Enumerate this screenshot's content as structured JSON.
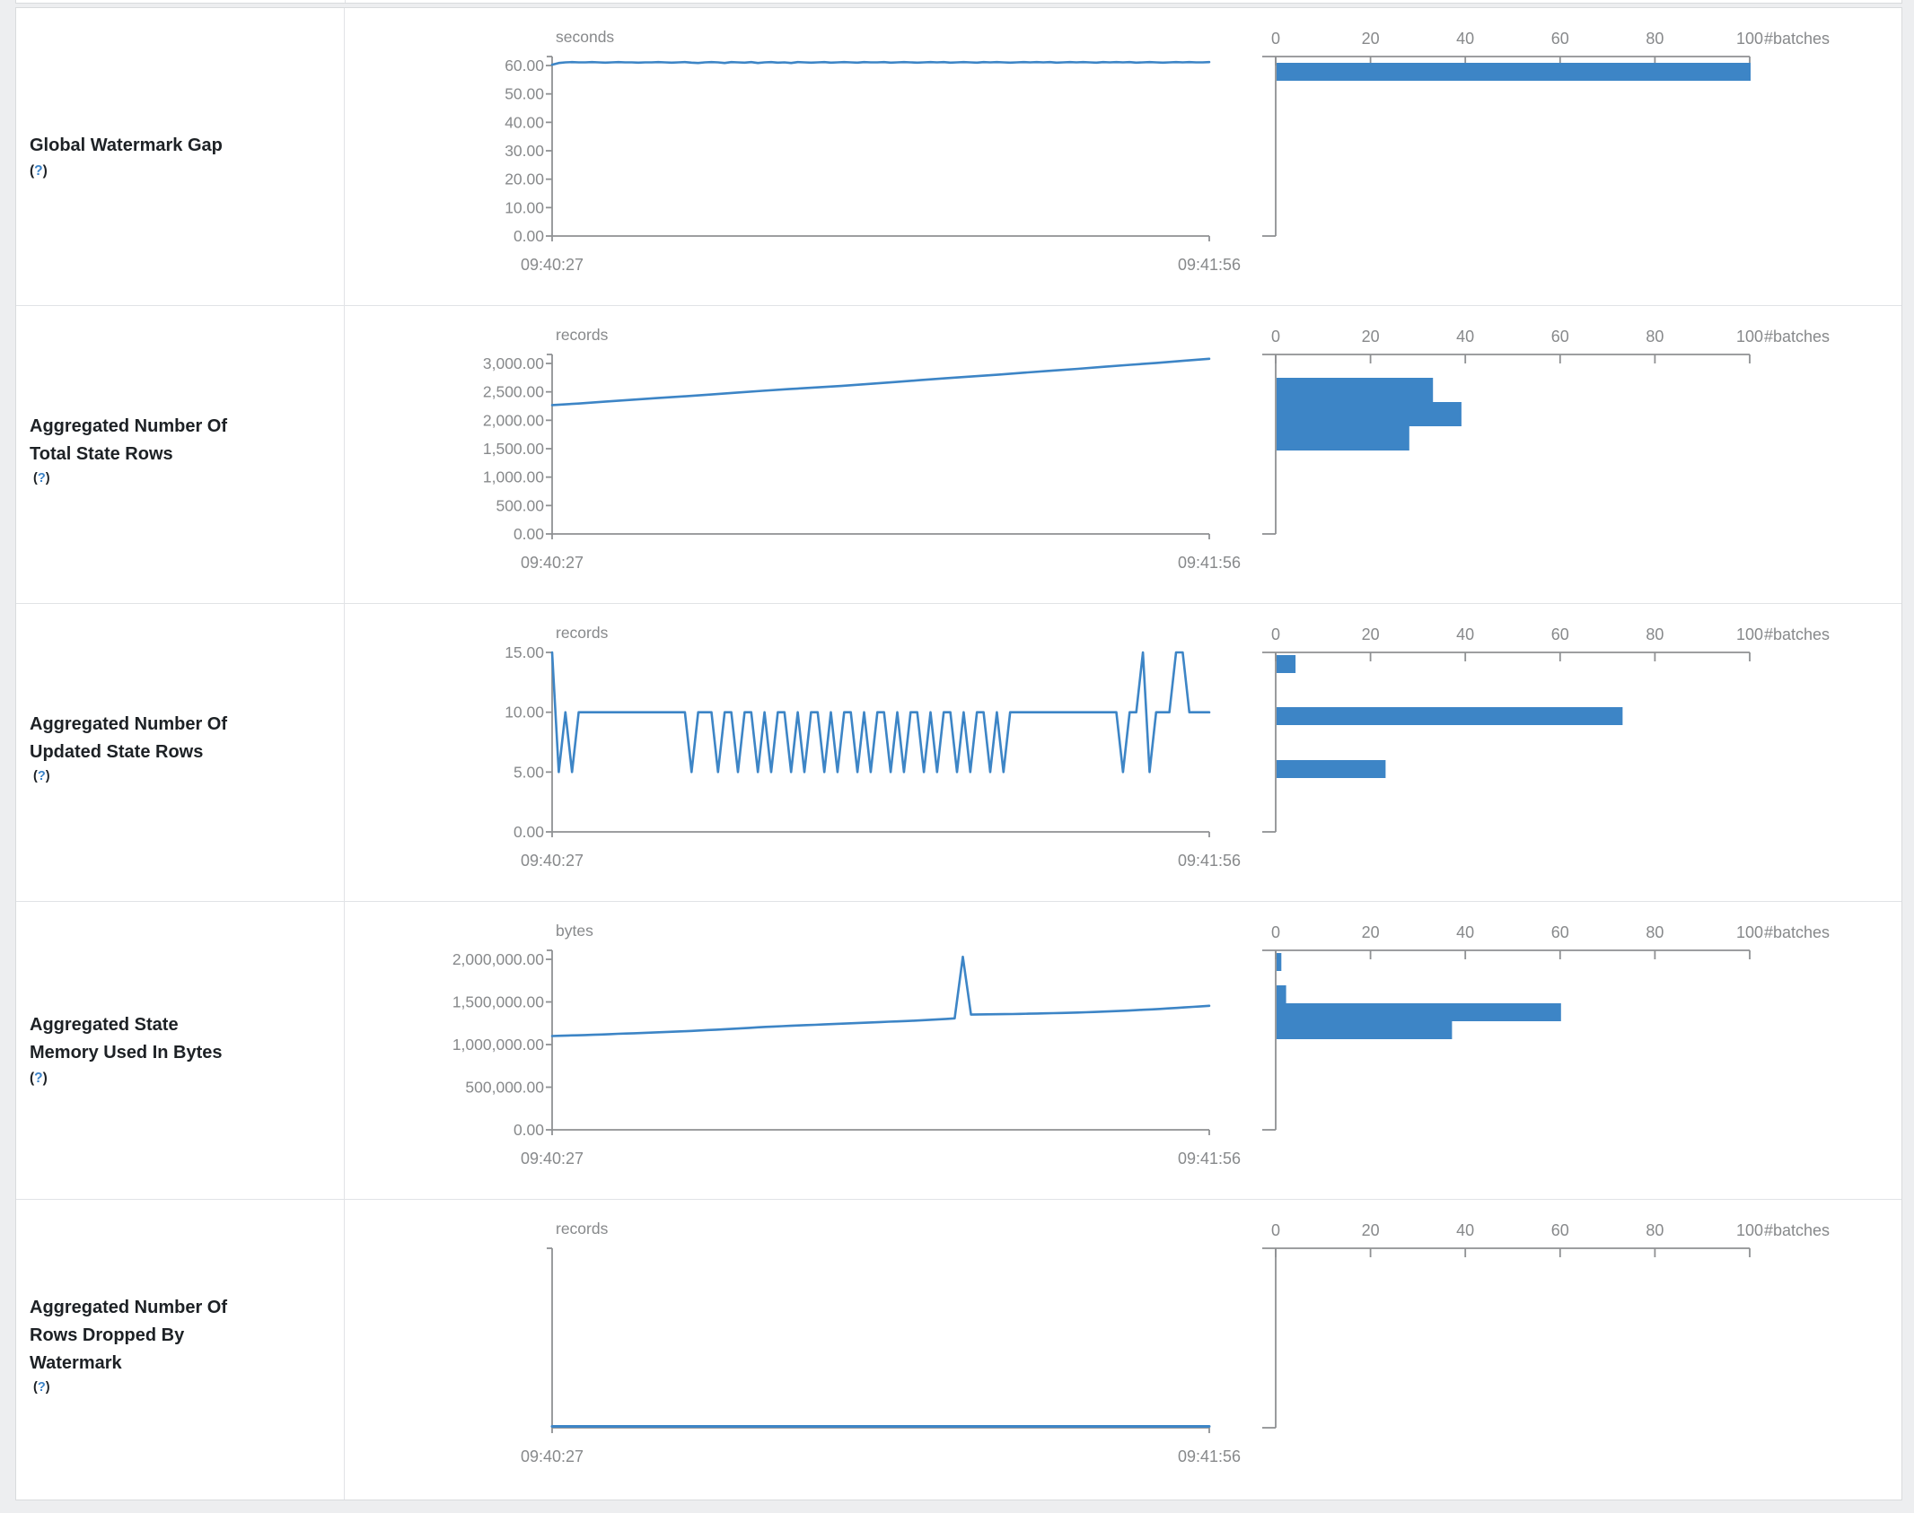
{
  "page": {
    "background": "#edeef0",
    "table_border": "#d9dbdd",
    "row_border": "#e1e3e6",
    "cell_bg": "#ffffff"
  },
  "colors": {
    "accent_blue": "#3d85c6",
    "axis_gray": "#8f9193",
    "text_gray": "#87898b",
    "title_color": "#1d2125",
    "help_blue": "#3c83c8"
  },
  "chart_data": [
    {
      "id": "global-watermark-gap",
      "title_lines": [
        "Global Watermark Gap"
      ],
      "help_label": "(?)",
      "help_inline": false,
      "type": "line+bar",
      "timeline": {
        "unit": "seconds",
        "x_start": "09:40:27",
        "x_end": "09:41:56",
        "y_tick_labels": [
          "60.00",
          "50.00",
          "40.00",
          "30.00",
          "20.00",
          "10.00",
          "0.00"
        ],
        "y_max": 60,
        "has_top_cap": true,
        "values": [
          60.3,
          60.9,
          61.1,
          61.2,
          61.1,
          61.1,
          61.2,
          61.1,
          61.0,
          61.1,
          61.2,
          61.1,
          61.1,
          61.0,
          61.1,
          61.1,
          61.2,
          61.1,
          61.0,
          61.1,
          61.2,
          61.0,
          60.9,
          61.1,
          61.2,
          61.1,
          60.9,
          61.2,
          61.1,
          61.0,
          61.2,
          60.9,
          61.1,
          61.2,
          61.0,
          61.1,
          60.9,
          61.2,
          61.1,
          61.0,
          61.1,
          61.2,
          61.0,
          61.1,
          61.2,
          61.1,
          61.0,
          61.2,
          61.1,
          61.1,
          61.2,
          61.0,
          61.1,
          61.2,
          61.1,
          61.0,
          61.1,
          61.2,
          61.1,
          61.2,
          61.0,
          61.1,
          61.2,
          61.1,
          61.0,
          61.2,
          61.1,
          61.2,
          61.1,
          61.0,
          61.1,
          61.2,
          61.1,
          61.2,
          61.1,
          61.2,
          61.0,
          61.1,
          61.2,
          61.1,
          61.2,
          61.1,
          61.0,
          61.2,
          61.1,
          61.2,
          61.1,
          61.2,
          61.0,
          61.1,
          61.2,
          61.1,
          61.0,
          61.1,
          61.2,
          61.1,
          61.2,
          61.1,
          61.1,
          61.2
        ]
      },
      "histogram": {
        "x_tick_labels": [
          "0",
          "20",
          "40",
          "60",
          "80",
          "100"
        ],
        "x_label": "#batches",
        "x_max": 100,
        "bar_thickness_frac": 0.1,
        "bars": [
          {
            "count": 100,
            "top_frac": 0.035
          }
        ]
      }
    },
    {
      "id": "aggregated-number-of-total-state-rows",
      "title_lines": [
        "Aggregated Number Of",
        "Total State Rows"
      ],
      "help_label": "(?)",
      "help_inline": true,
      "type": "line+bar",
      "timeline": {
        "unit": "records",
        "x_start": "09:40:27",
        "x_end": "09:41:56",
        "y_tick_labels": [
          "3,000.00",
          "2,500.00",
          "2,000.00",
          "1,500.00",
          "1,000.00",
          "500.00",
          "0.00"
        ],
        "y_max": 3000,
        "has_top_cap": true,
        "values": [
          2268,
          2295,
          2327,
          2359,
          2390,
          2420,
          2452,
          2486,
          2518,
          2548,
          2577,
          2604,
          2638,
          2672,
          2706,
          2741,
          2772,
          2804,
          2839,
          2872,
          2906,
          2941,
          2976,
          3010,
          3046,
          3082
        ]
      },
      "histogram": {
        "x_tick_labels": [
          "0",
          "20",
          "40",
          "60",
          "80",
          "100"
        ],
        "x_label": "#batches",
        "x_max": 100,
        "bar_thickness_frac": 0.135,
        "bars": [
          {
            "count": 33,
            "top_frac": 0.13
          },
          {
            "count": 39,
            "top_frac": 0.265
          },
          {
            "count": 28,
            "top_frac": 0.4
          }
        ]
      }
    },
    {
      "id": "aggregated-number-of-updated-state-rows",
      "title_lines": [
        "Aggregated Number Of",
        "Updated State Rows"
      ],
      "help_label": "(?)",
      "help_inline": true,
      "type": "line+bar",
      "timeline": {
        "unit": "records",
        "x_start": "09:40:27",
        "x_end": "09:41:56",
        "y_tick_labels": [
          "15.00",
          "10.00",
          "5.00",
          "0.00"
        ],
        "y_max": 15,
        "has_top_cap": false,
        "values": [
          15,
          5,
          10,
          5,
          10,
          10,
          10,
          10,
          10,
          10,
          10,
          10,
          10,
          10,
          10,
          10,
          10,
          10,
          10,
          10,
          10,
          5,
          10,
          10,
          10,
          5,
          10,
          10,
          5,
          10,
          10,
          5,
          10,
          5,
          10,
          10,
          5,
          10,
          5,
          10,
          10,
          5,
          10,
          5,
          10,
          10,
          5,
          10,
          5,
          10,
          10,
          5,
          10,
          5,
          10,
          10,
          5,
          10,
          5,
          10,
          10,
          5,
          10,
          5,
          10,
          10,
          5,
          10,
          5,
          10,
          10,
          10,
          10,
          10,
          10,
          10,
          10,
          10,
          10,
          10,
          10,
          10,
          10,
          10,
          10,
          10,
          5,
          10,
          10,
          15,
          5,
          10,
          10,
          10,
          15,
          15,
          10,
          10,
          10,
          10
        ]
      },
      "histogram": {
        "x_tick_labels": [
          "0",
          "20",
          "40",
          "60",
          "80",
          "100"
        ],
        "x_label": "#batches",
        "x_max": 100,
        "bar_thickness_frac": 0.1,
        "bars": [
          {
            "count": 4,
            "top_frac": 0.015
          },
          {
            "count": 73,
            "top_frac": 0.305
          },
          {
            "count": 23,
            "top_frac": 0.6
          }
        ]
      }
    },
    {
      "id": "aggregated-state-memory-used-in-bytes",
      "title_lines": [
        "Aggregated State",
        "Memory Used In Bytes"
      ],
      "help_label": "(?)",
      "help_inline": false,
      "type": "line+bar",
      "timeline": {
        "unit": "bytes",
        "x_start": "09:40:27",
        "x_end": "09:41:56",
        "y_tick_labels": [
          "2,000,000.00",
          "1,500,000.00",
          "1,000,000.00",
          "500,000.00",
          "0.00"
        ],
        "y_max": 2000000,
        "has_top_cap": true,
        "values": [
          1100000,
          1103000,
          1106000,
          1108000,
          1112000,
          1115000,
          1118000,
          1122000,
          1126000,
          1130000,
          1133000,
          1136000,
          1140000,
          1144000,
          1148000,
          1152000,
          1156000,
          1160000,
          1165000,
          1170000,
          1175000,
          1180000,
          1185000,
          1190000,
          1196000,
          1202000,
          1207000,
          1212000,
          1216000,
          1220000,
          1224000,
          1228000,
          1232000,
          1236000,
          1240000,
          1244000,
          1248000,
          1252000,
          1256000,
          1260000,
          1264000,
          1268000,
          1272000,
          1276000,
          1280000,
          1285000,
          1290000,
          1296000,
          1301000,
          1307000,
          2030000,
          1352000,
          1354000,
          1355000,
          1356000,
          1357000,
          1358000,
          1360000,
          1362000,
          1364000,
          1366000,
          1368000,
          1370000,
          1373000,
          1376000,
          1379000,
          1382000,
          1386000,
          1390000,
          1394000,
          1398000,
          1403000,
          1408000,
          1413000,
          1418000,
          1424000,
          1430000,
          1436000,
          1442000,
          1448000,
          1455000
        ]
      },
      "histogram": {
        "x_tick_labels": [
          "0",
          "20",
          "40",
          "60",
          "80",
          "100"
        ],
        "x_label": "#batches",
        "x_max": 100,
        "bar_thickness_frac": 0.1,
        "bars": [
          {
            "count": 1,
            "top_frac": 0.015
          },
          {
            "count": 2,
            "top_frac": 0.195
          },
          {
            "count": 60,
            "top_frac": 0.295
          },
          {
            "count": 37,
            "top_frac": 0.395
          }
        ]
      }
    },
    {
      "id": "aggregated-number-of-rows-dropped-by-watermark",
      "title_lines": [
        "Aggregated Number Of",
        "Rows Dropped By",
        "Watermark"
      ],
      "help_label": "(?)",
      "help_inline": true,
      "type": "line+bar",
      "timeline": {
        "unit": "records",
        "x_start": "09:40:27",
        "x_end": "09:41:56",
        "y_tick_labels": [],
        "y_max": null,
        "has_top_cap": true,
        "values": [
          0,
          0
        ]
      },
      "histogram": {
        "x_tick_labels": [
          "0",
          "20",
          "40",
          "60",
          "80",
          "100"
        ],
        "x_label": "#batches",
        "x_max": 100,
        "bar_thickness_frac": 0.1,
        "bars": []
      }
    }
  ]
}
